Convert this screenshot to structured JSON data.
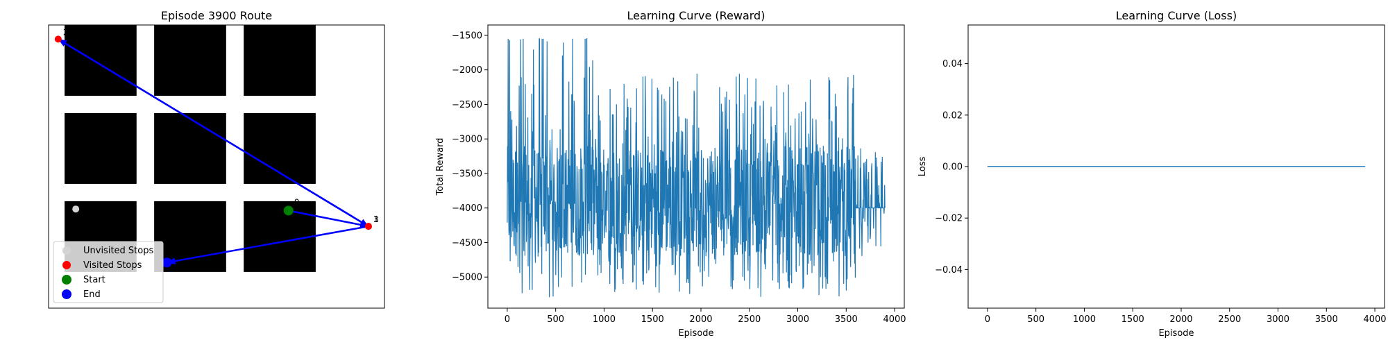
{
  "chart_data": [
    {
      "type": "scatter",
      "title": "Episode 3900 Route",
      "xlim": [
        0,
        10.5
      ],
      "ylim": [
        0,
        9
      ],
      "obstacles": [
        {
          "x0": 0.5,
          "x1": 2.75,
          "y0": 6.75,
          "y1": 9
        },
        {
          "x0": 3.3,
          "x1": 5.55,
          "y0": 6.75,
          "y1": 9
        },
        {
          "x0": 6.1,
          "x1": 8.35,
          "y0": 6.75,
          "y1": 9
        },
        {
          "x0": 0.5,
          "x1": 2.75,
          "y0": 3.95,
          "y1": 6.2
        },
        {
          "x0": 3.3,
          "x1": 5.55,
          "y0": 3.95,
          "y1": 6.2
        },
        {
          "x0": 6.1,
          "x1": 8.35,
          "y0": 3.95,
          "y1": 6.2
        },
        {
          "x0": 0.5,
          "x1": 2.75,
          "y0": 1.15,
          "y1": 3.4
        },
        {
          "x0": 3.3,
          "x1": 5.55,
          "y0": 1.15,
          "y1": 3.4
        },
        {
          "x0": 6.1,
          "x1": 8.35,
          "y0": 1.15,
          "y1": 3.4
        }
      ],
      "unvisited_stops": [
        {
          "x": 0.85,
          "y": 3.15
        }
      ],
      "visited_stops": [
        {
          "x": 0.3,
          "y": 8.55,
          "label": "2"
        },
        {
          "x": 10.0,
          "y": 2.6,
          "label": "3"
        },
        {
          "x": 10.0,
          "y": 2.6,
          "label": "1"
        }
      ],
      "start": {
        "x": 7.5,
        "y": 3.1,
        "label": "0"
      },
      "end": {
        "x": 3.7,
        "y": 1.45
      },
      "route": [
        [
          7.5,
          3.1
        ],
        [
          10.0,
          2.6
        ],
        [
          0.3,
          8.55
        ],
        [
          10.0,
          2.6
        ],
        [
          3.7,
          1.45
        ]
      ],
      "legend": {
        "position": "lower-left",
        "entries": [
          "Unvisited Stops",
          "Visited Stops",
          "Start",
          "End"
        ]
      },
      "colors": {
        "unvisited": "#d3d3d3",
        "visited": "#ff0000",
        "start": "#008000",
        "end": "#0000ff",
        "route": "#0000ff",
        "obstacle": "#000000"
      }
    },
    {
      "type": "line",
      "title": "Learning Curve (Reward)",
      "xlabel": "Episode",
      "ylabel": "Total Reward",
      "xlim": [
        -200,
        4100
      ],
      "ylim": [
        -5450,
        -1350
      ],
      "xticks": [
        0,
        500,
        1000,
        1500,
        2000,
        2500,
        3000,
        3500,
        4000
      ],
      "yticks": [
        -5000,
        -4500,
        -4000,
        -3500,
        -3000,
        -2500,
        -2000,
        -1500
      ],
      "series_summary": {
        "episodes": 3900,
        "baseline": -4000,
        "min": -5300,
        "max": -1550
      },
      "color": "#1f77b4"
    },
    {
      "type": "line",
      "title": "Learning Curve (Loss)",
      "xlabel": "Episode",
      "ylabel": "Loss",
      "xlim": [
        -200,
        4100
      ],
      "ylim": [
        -0.055,
        0.055
      ],
      "xticks": [
        0,
        500,
        1000,
        1500,
        2000,
        2500,
        3000,
        3500,
        4000
      ],
      "yticks": [
        -0.04,
        -0.02,
        0.0,
        0.02,
        0.04
      ],
      "ytick_labels": [
        "−0.04",
        "−0.02",
        "0.00",
        "0.02",
        "0.04"
      ],
      "series": [
        {
          "x": [
            0,
            3900
          ],
          "values": [
            0,
            0
          ]
        }
      ],
      "color": "#1f77b4"
    }
  ]
}
